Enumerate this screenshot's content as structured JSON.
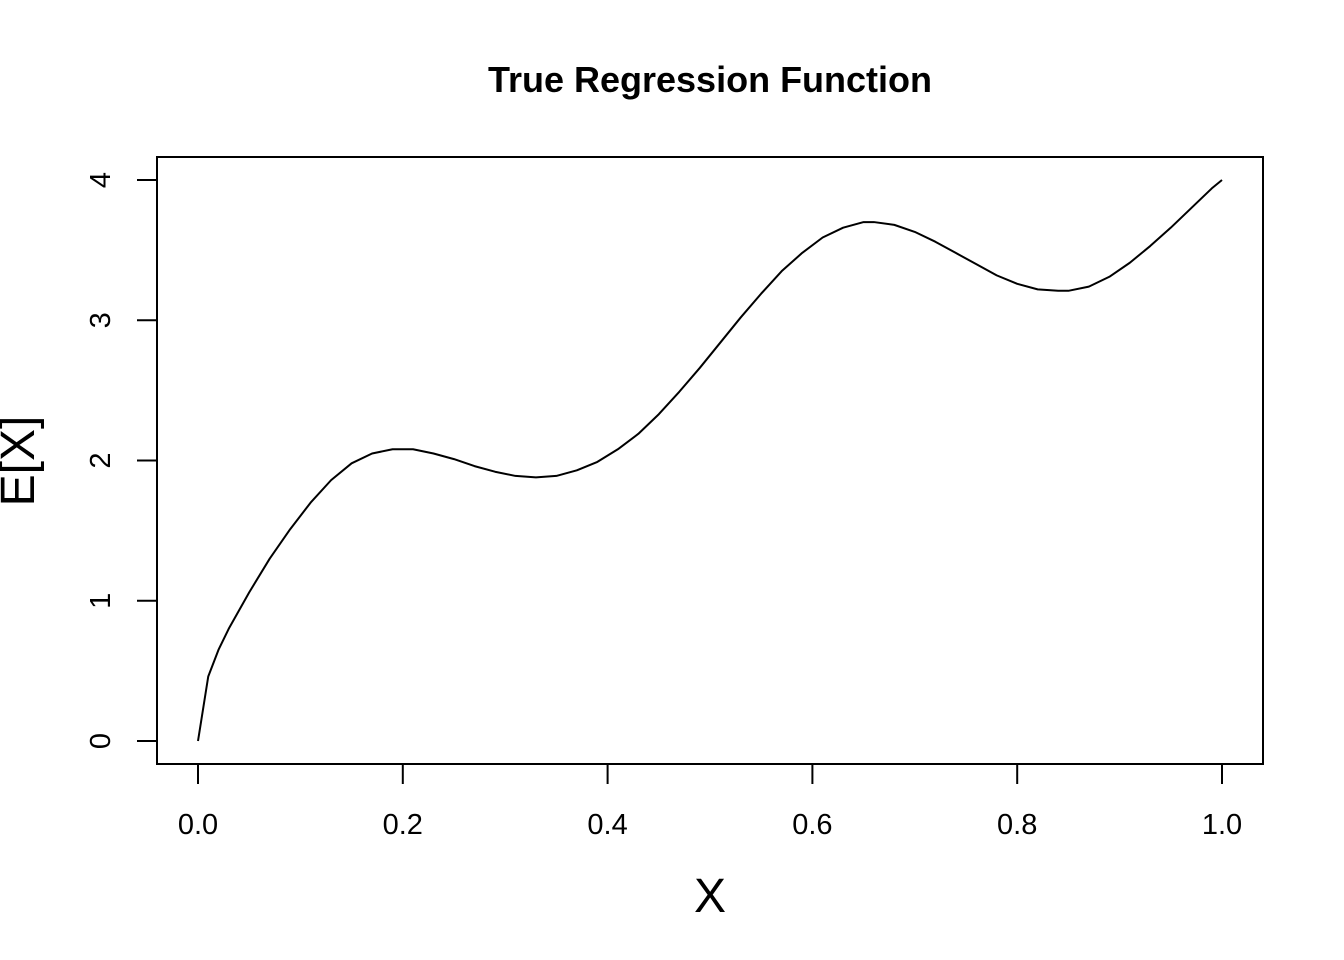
{
  "chart_data": {
    "type": "line",
    "title": "True Regression Function",
    "xlabel": "X",
    "ylabel": "E[X]",
    "xlim": [
      0,
      1
    ],
    "ylim": [
      0,
      4
    ],
    "xticks": [
      0.0,
      0.2,
      0.4,
      0.6,
      0.8,
      1.0
    ],
    "xtick_labels": [
      "0.0",
      "0.2",
      "0.4",
      "0.6",
      "0.8",
      "1.0"
    ],
    "yticks": [
      0,
      1,
      2,
      3,
      4
    ],
    "ytick_labels": [
      "0",
      "1",
      "2",
      "3",
      "4"
    ],
    "grid": false,
    "line_color": "#000000",
    "series": [
      {
        "x": [
          0.0,
          0.01,
          0.02,
          0.03,
          0.05,
          0.07,
          0.09,
          0.11,
          0.13,
          0.15,
          0.17,
          0.19,
          0.21,
          0.23,
          0.25,
          0.27,
          0.29,
          0.31,
          0.33,
          0.35,
          0.37,
          0.39,
          0.41,
          0.43,
          0.45,
          0.47,
          0.49,
          0.51,
          0.53,
          0.55,
          0.57,
          0.59,
          0.61,
          0.63,
          0.65,
          0.66,
          0.68,
          0.7,
          0.72,
          0.74,
          0.76,
          0.78,
          0.8,
          0.82,
          0.84,
          0.85,
          0.87,
          0.89,
          0.91,
          0.93,
          0.95,
          0.97,
          0.99,
          1.0
        ],
        "y": [
          0.0,
          0.46,
          0.65,
          0.8,
          1.06,
          1.3,
          1.51,
          1.7,
          1.86,
          1.98,
          2.05,
          2.08,
          2.08,
          2.05,
          2.01,
          1.96,
          1.92,
          1.89,
          1.88,
          1.89,
          1.93,
          1.99,
          2.08,
          2.19,
          2.33,
          2.49,
          2.66,
          2.84,
          3.02,
          3.19,
          3.35,
          3.48,
          3.59,
          3.66,
          3.7,
          3.7,
          3.68,
          3.63,
          3.56,
          3.48,
          3.4,
          3.32,
          3.26,
          3.22,
          3.21,
          3.21,
          3.24,
          3.31,
          3.41,
          3.53,
          3.66,
          3.8,
          3.94,
          4.0
        ]
      }
    ]
  }
}
